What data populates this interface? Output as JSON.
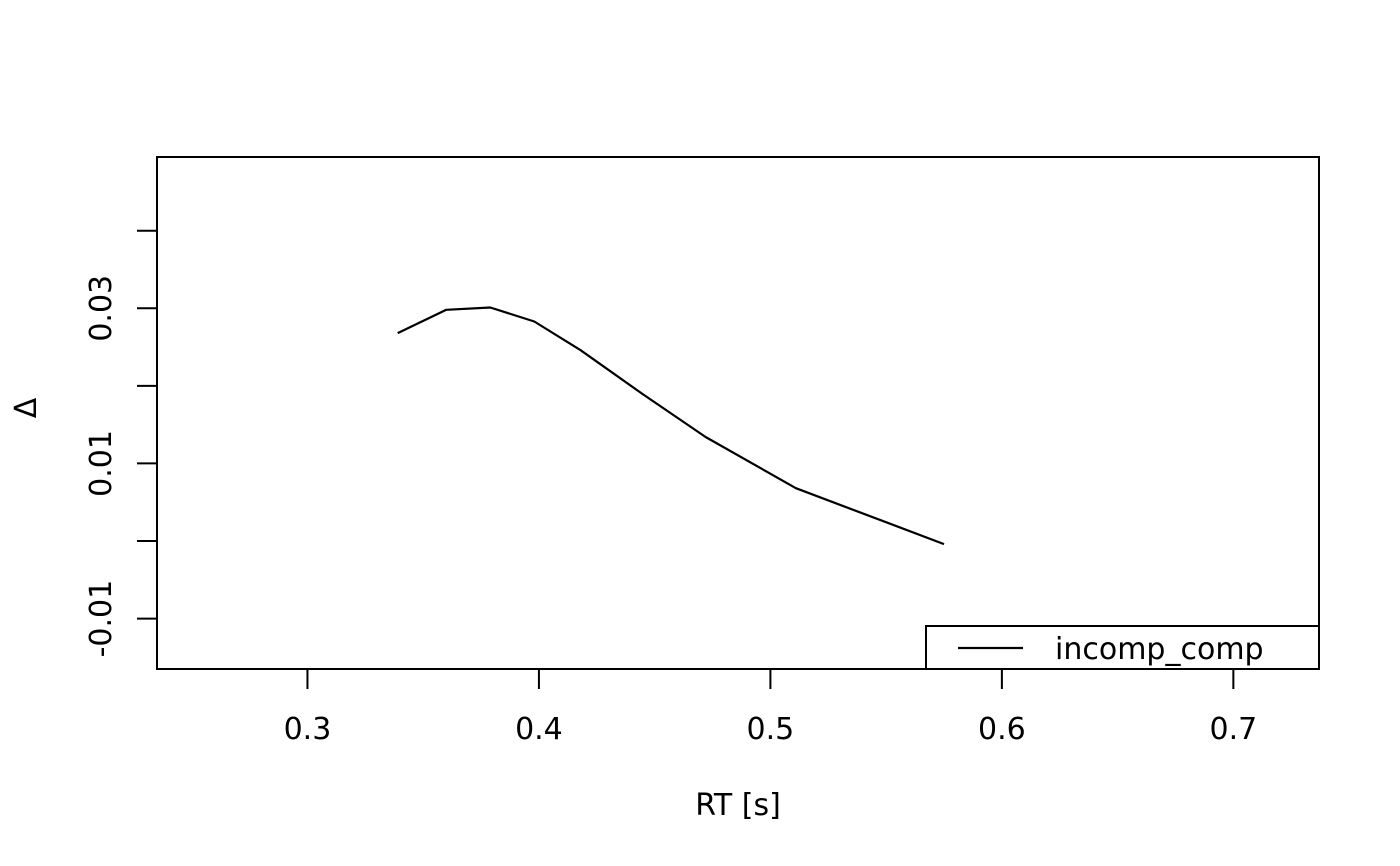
{
  "chart_data": {
    "type": "line",
    "xlabel": "RT [s]",
    "ylabel": "Δ",
    "xlim": [
      0.235,
      0.737
    ],
    "ylim": [
      -0.0165,
      0.0495
    ],
    "x_ticks": [
      {
        "value": 0.3,
        "label": "0.3"
      },
      {
        "value": 0.4,
        "label": "0.4"
      },
      {
        "value": 0.5,
        "label": "0.5"
      },
      {
        "value": 0.6,
        "label": "0.6"
      },
      {
        "value": 0.7,
        "label": "0.7"
      }
    ],
    "y_ticks": [
      {
        "value": -0.01,
        "label": "-0.01"
      },
      {
        "value": 0.0,
        "label": ""
      },
      {
        "value": 0.01,
        "label": "0.01"
      },
      {
        "value": 0.02,
        "label": ""
      },
      {
        "value": 0.03,
        "label": "0.03"
      },
      {
        "value": 0.04,
        "label": ""
      }
    ],
    "series": [
      {
        "name": "incomp_comp",
        "color": "#000000",
        "x": [
          0.339,
          0.36,
          0.379,
          0.398,
          0.418,
          0.445,
          0.472,
          0.511,
          0.575
        ],
        "y": [
          0.0268,
          0.0298,
          0.0301,
          0.0283,
          0.0246,
          0.0189,
          0.0134,
          0.0068,
          -0.0004
        ]
      }
    ],
    "legend": {
      "position": "bottom-right",
      "entries": [
        "incomp_comp"
      ]
    },
    "grid": false
  }
}
